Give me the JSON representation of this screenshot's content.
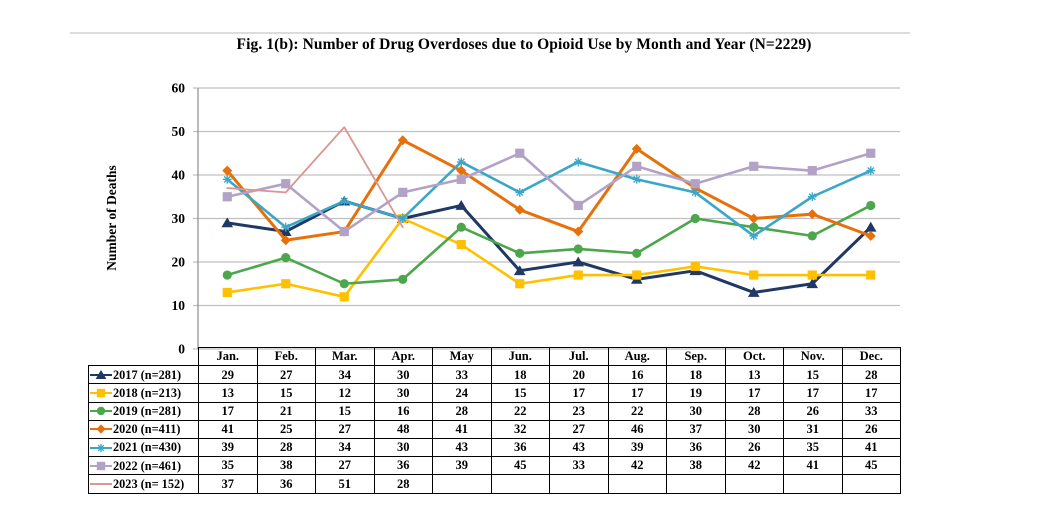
{
  "figure": {
    "title": "Fig. 1(b): Number of Drug Overdoses due to Opioid Use by Month and Year (N=2229)"
  },
  "chart_data": {
    "type": "line",
    "title": "Fig. 1(b): Number of Drug Overdoses due to Opioid Use by Month and Year (N=2229)",
    "xlabel": "",
    "ylabel": "Number of Deaths",
    "ylim": [
      0,
      60
    ],
    "yticks": [
      0,
      10,
      20,
      30,
      40,
      50,
      60
    ],
    "grid": true,
    "legend_position": "table-left-column",
    "categories": [
      "Jan.",
      "Feb.",
      "Mar.",
      "Apr.",
      "May",
      "Jun.",
      "Jul.",
      "Aug.",
      "Sep.",
      "Oct.",
      "Nov.",
      "Dec."
    ],
    "series": [
      {
        "name": "2017 (n=281)",
        "color": "#1F3864",
        "marker": "triangle",
        "values": [
          29,
          27,
          34,
          30,
          33,
          18,
          20,
          16,
          18,
          13,
          15,
          28
        ]
      },
      {
        "name": "2018 (n=213)",
        "color": "#FFC000",
        "marker": "square",
        "values": [
          13,
          15,
          12,
          30,
          24,
          15,
          17,
          17,
          19,
          17,
          17,
          17
        ]
      },
      {
        "name": "2019 (n=281)",
        "color": "#4CA64C",
        "marker": "circle",
        "values": [
          17,
          21,
          15,
          16,
          28,
          22,
          23,
          22,
          30,
          28,
          26,
          33
        ]
      },
      {
        "name": "2020 (n=411)",
        "color": "#E8700A",
        "marker": "diamond",
        "values": [
          41,
          25,
          27,
          48,
          41,
          32,
          27,
          46,
          37,
          30,
          31,
          26
        ]
      },
      {
        "name": "2021 (n=430)",
        "color": "#3AA7C6",
        "marker": "asterisk",
        "values": [
          39,
          28,
          34,
          30,
          43,
          36,
          43,
          39,
          36,
          26,
          35,
          41
        ]
      },
      {
        "name": "2022 (n=461)",
        "color": "#B3A2C7",
        "marker": "square",
        "values": [
          35,
          38,
          27,
          36,
          39,
          45,
          33,
          42,
          38,
          42,
          41,
          45
        ]
      },
      {
        "name": "2023 (n= 152)",
        "color": "#D99694",
        "marker": "none",
        "values": [
          37,
          36,
          51,
          28
        ]
      }
    ],
    "colors": {
      "gridline": "#C0C0C0",
      "axis": "#8C8C8C",
      "table_border": "#000000",
      "divider": "#DCDCDC"
    }
  }
}
